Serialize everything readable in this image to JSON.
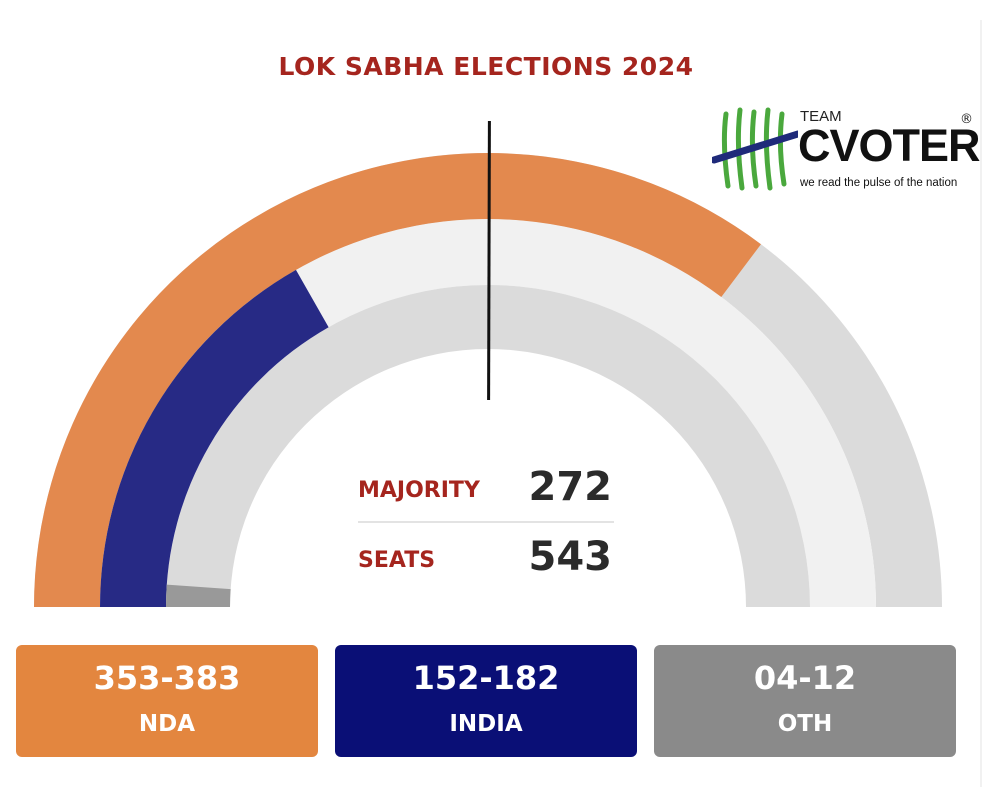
{
  "title": "LOK SABHA ELECTIONS 2024",
  "logo": {
    "team": "TEAM",
    "brand": "CVOTER",
    "registered": "®",
    "tagline": "we read the pulse of the nation"
  },
  "center": {
    "majority_label": "MAJORITY",
    "majority_value": "272",
    "seats_label": "SEATS",
    "seats_value": "543"
  },
  "colors": {
    "nda": "#e3894e",
    "india": "#272a85",
    "oth": "#999999",
    "track_outer": "#dbdbdb",
    "track_mid": "#f1f1f1",
    "track_inner": "#dbdbdb",
    "title": "#a5251e"
  },
  "chart_data": {
    "type": "gauge",
    "title": "LOK SABHA ELECTIONS 2024",
    "total_seats": 543,
    "majority": 272,
    "series": [
      {
        "name": "NDA",
        "label": "353-383",
        "min": 353,
        "max": 383,
        "color": "#e3894e"
      },
      {
        "name": "INDIA",
        "label": "152-182",
        "min": 152,
        "max": 182,
        "color": "#272a85"
      },
      {
        "name": "OTH",
        "label": "04-12",
        "min": 4,
        "max": 12,
        "color": "#999999"
      }
    ]
  }
}
